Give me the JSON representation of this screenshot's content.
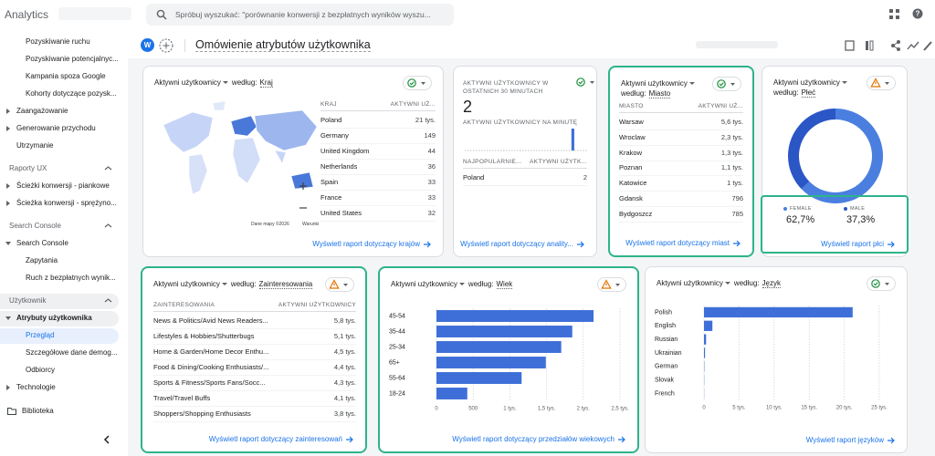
{
  "topbar": {
    "product": "Analytics",
    "search_placeholder": "Spróbuj wyszukać: \"porównanie konwersji z bezpłatnych wyników wyszu..."
  },
  "sidebar": [
    {
      "label": "Pozyskiwanie ruchu",
      "kind": "sub"
    },
    {
      "label": "Pozyskiwanie potencjalnyc...",
      "kind": "sub"
    },
    {
      "label": "Kampania spoza Google",
      "kind": "sub"
    },
    {
      "label": "Kohorty dotyczące pozysk...",
      "kind": "sub"
    },
    {
      "label": "Zaangażowanie",
      "kind": "group"
    },
    {
      "label": "Generowanie przychodu",
      "kind": "group"
    },
    {
      "label": "Utrzymanie",
      "kind": "plain"
    },
    {
      "label": "Raporty UX",
      "kind": "heading"
    },
    {
      "label": "Ścieżki konwersji - piankowe",
      "kind": "group"
    },
    {
      "label": "Ścieżka konwersji - sprężyno...",
      "kind": "group"
    },
    {
      "label": "Search Console",
      "kind": "heading"
    },
    {
      "label": "Search Console",
      "kind": "open"
    },
    {
      "label": "Zapytania",
      "kind": "sub"
    },
    {
      "label": "Ruch z bezpłatnych wynik...",
      "kind": "sub"
    },
    {
      "label": "Użytkownik",
      "kind": "heading",
      "highlight": true
    },
    {
      "label": "Atrybuty użytkownika",
      "kind": "open",
      "highlight": true
    },
    {
      "label": "Przegląd",
      "kind": "active"
    },
    {
      "label": "Szczegółowe dane demog...",
      "kind": "sub"
    },
    {
      "label": "Odbiorcy",
      "kind": "sub"
    },
    {
      "label": "Technologie",
      "kind": "group"
    },
    {
      "label": "Biblioteka",
      "kind": "library"
    }
  ],
  "page_header": {
    "avatar": "W",
    "title": "Omówienie atrybutów użytkownika"
  },
  "cards": {
    "country": {
      "title": {
        "metric": "Aktywni użytkownicy",
        "by": "według:",
        "dimension": "Kraj"
      },
      "status": "ok",
      "columns": [
        "KRAJ",
        "AKTYWNI UŻ..."
      ],
      "rows": [
        [
          "Poland",
          "21 tys."
        ],
        [
          "Germany",
          "149"
        ],
        [
          "United Kingdom",
          "44"
        ],
        [
          "Netherlands",
          "36"
        ],
        [
          "Spain",
          "33"
        ],
        [
          "France",
          "33"
        ],
        [
          "United States",
          "32"
        ]
      ],
      "map_credit": "Dane mapy ©2026",
      "map_terms": "Warunki",
      "link": "Wyświetl raport dotyczący krajów"
    },
    "realtime": {
      "label_30min": "AKTYWNI UŻYTKOWNICY W OSTATNICH 30 MINUTACH",
      "count": 2,
      "label_per_minute": "AKTYWNI UŻYTKOWNICY NA MINUTĘ",
      "per_minute": [
        0,
        0,
        0,
        0,
        0,
        0,
        0,
        0,
        0,
        0,
        0,
        0,
        0,
        0,
        0,
        0,
        0,
        0,
        0,
        0,
        0,
        0,
        0,
        0,
        0,
        0,
        2,
        0,
        0,
        0
      ],
      "status": "ok",
      "columns": [
        "NAJPOPULARNIE...",
        "AKTYWNI UŻYTK..."
      ],
      "rows": [
        [
          "Poland",
          "2"
        ]
      ],
      "link": "Wyświetl raport dotyczący anality..."
    },
    "city": {
      "title": {
        "metric": "Aktywni użytkownicy",
        "by": "według:",
        "dimension": "Miasto"
      },
      "status": "ok",
      "columns": [
        "MIASTO",
        "AKTYWNI UŻ..."
      ],
      "rows": [
        [
          "Warsaw",
          "5,6 tys."
        ],
        [
          "Wroclaw",
          "2,3 tys."
        ],
        [
          "Krakow",
          "1,3 tys."
        ],
        [
          "Poznan",
          "1,1 tys."
        ],
        [
          "Katowice",
          "1 tys."
        ],
        [
          "Gdansk",
          "796"
        ],
        [
          "Bydgoszcz",
          "785"
        ]
      ],
      "link": "Wyświetl raport dotyczący miast"
    },
    "gender": {
      "title": {
        "metric": "Aktywni użytkownicy",
        "by": "według:",
        "dimension": "Płeć"
      },
      "status": "warning",
      "chart": {
        "type": "donut",
        "series": [
          {
            "name": "FEMALE",
            "value": 62.7,
            "value_label": "62,7%",
            "color": "#4a7fe0"
          },
          {
            "name": "MALE",
            "value": 37.3,
            "value_label": "37,3%",
            "color": "#2a56c6"
          }
        ]
      },
      "link": "Wyświetl raport płci"
    },
    "interests": {
      "title": {
        "metric": "Aktywni użytkownicy",
        "by": "według:",
        "dimension": "Zainteresowania"
      },
      "status": "warning",
      "columns": [
        "ZAINTERESOWANIA",
        "AKTYWNI UŻYTKOWNICY"
      ],
      "rows": [
        [
          "News & Politics/Avid News Readers...",
          "5,8 tys."
        ],
        [
          "Lifestyles & Hobbies/Shutterbugs",
          "5,1 tys."
        ],
        [
          "Home & Garden/Home Decor Enthu...",
          "4,5 tys."
        ],
        [
          "Food & Dining/Cooking Enthusiasts/...",
          "4,4 tys."
        ],
        [
          "Sports & Fitness/Sports Fans/Socc...",
          "4,3 tys."
        ],
        [
          "Travel/Travel Buffs",
          "4,1 tys."
        ],
        [
          "Shoppers/Shopping Enthusiasts",
          "3,8 tys."
        ]
      ],
      "link": "Wyświetl raport dotyczący zainteresowań"
    },
    "age": {
      "title": {
        "metric": "Aktywni użytkownicy",
        "by": "według:",
        "dimension": "Wiek"
      },
      "status": "warning",
      "chart": {
        "type": "hbar",
        "categories": [
          "45-54",
          "35-44",
          "25-34",
          "65+",
          "55-64",
          "18-24"
        ],
        "values": [
          2140,
          1850,
          1700,
          1490,
          1160,
          420
        ],
        "xlim": [
          0,
          2500
        ],
        "xticks": [
          0,
          500,
          {
            "value": 1000,
            "label": "1 tys."
          },
          {
            "value": 1500,
            "label": "1,5 tys."
          },
          {
            "value": 2000,
            "label": "2 tys."
          },
          {
            "value": 2500,
            "label": "2,5 tys."
          }
        ],
        "color": "#3e6fd8",
        "grid": true
      },
      "link": "Wyświetl raport dotyczący przedziałów wiekowych"
    },
    "language": {
      "title": {
        "metric": "Aktywni użytkownicy",
        "by": "według:",
        "dimension": "Język"
      },
      "status": "ok",
      "chart": {
        "type": "hbar",
        "categories": [
          "Polish",
          "English",
          "Russian",
          "Ukrainian",
          "German",
          "Slovak",
          "French"
        ],
        "values": [
          21200,
          1200,
          300,
          150,
          50,
          30,
          20
        ],
        "xlim": [
          0,
          25000
        ],
        "xticks": [
          0,
          {
            "value": 5000,
            "label": "5 tys."
          },
          {
            "value": 10000,
            "label": "10 tys."
          },
          {
            "value": 15000,
            "label": "15 tys."
          },
          {
            "value": 20000,
            "label": "20 tys."
          },
          {
            "value": 25000,
            "label": "25 tys."
          }
        ],
        "color": "#3e6fd8",
        "grid": true
      },
      "link": "Wyświetl raport języków"
    }
  }
}
